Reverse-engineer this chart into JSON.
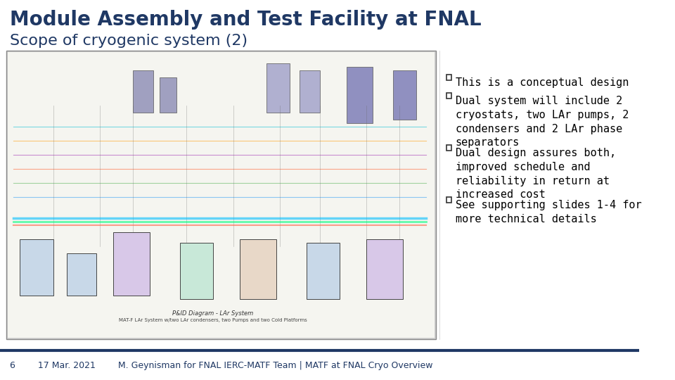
{
  "title": "Module Assembly and Test Facility at FNAL",
  "subtitle": "Scope of cryogenic system (2)",
  "title_color": "#1F3864",
  "subtitle_color": "#1F3864",
  "title_fontsize": 20,
  "subtitle_fontsize": 16,
  "background_color": "#ffffff",
  "bullet_points": [
    "This is a conceptual design",
    "Dual system will include 2\ncryostats, two LAr pumps, 2\ncondensers and 2 LAr phase\nseparators",
    "Dual design assures both,\nimproved schedule and\nreliability in return at\nincreased cost",
    "See supporting slides 1-4 for\nmore technical details"
  ],
  "footer_line_color": "#1F3864",
  "footer_text": "6        17 Mar. 2021        M. Geynisman for FNAL IERC-MATF Team | MATF at FNAL Cryo Overview",
  "footer_color": "#1F3864",
  "footer_fontsize": 9,
  "bullet_fontsize": 11,
  "diagram_box_color": "#e8e8e8",
  "diagram_border_color": "#888888",
  "image_placeholder_color": "#d0d0d0"
}
